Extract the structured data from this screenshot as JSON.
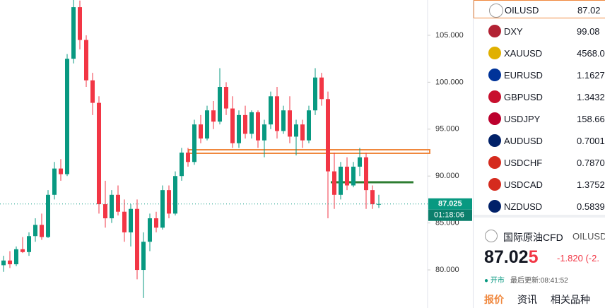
{
  "chart_data": {
    "type": "candlestick",
    "ylim": [
      75.94,
      108.76
    ],
    "yticks": [
      {
        "value": 80,
        "label": "80.000"
      },
      {
        "value": 85,
        "label": "85.000"
      },
      {
        "value": 90,
        "label": "90.000"
      },
      {
        "value": 95,
        "label": "95.000"
      },
      {
        "value": 100,
        "label": "100.000"
      },
      {
        "value": 105,
        "label": "105.000"
      }
    ],
    "up_color": "#089981",
    "down_color": "#f23645",
    "open": [
      80.5,
      81.0,
      80.6,
      82.2,
      81.9,
      83.6,
      84.8,
      83.5,
      88.0,
      90.8,
      90.2,
      102.5,
      108,
      104.5,
      100.2,
      97.8,
      87.0,
      85.5,
      88.0,
      86.2,
      84.0,
      86.5,
      80.0,
      83.0,
      85.5,
      84.5,
      88.5,
      86.0,
      90.0,
      92.5,
      91.5,
      95.5,
      94.0,
      97.0,
      95.8,
      99.5,
      97.2,
      93.5,
      96.5,
      94.5,
      96.8,
      93.8,
      95.5,
      98.5,
      94.8,
      97.0,
      94.2,
      95.5,
      93.8,
      97.0,
      100.5,
      98.2,
      90.5,
      88.0,
      91.0,
      89.0,
      91.0,
      92.0,
      88.5,
      87.0
    ],
    "high": [
      81.5,
      82.0,
      82.5,
      83.5,
      84.0,
      85.5,
      86.0,
      88.5,
      91.5,
      91.8,
      103,
      109,
      108.7,
      105,
      101,
      98.5,
      89.5,
      88.5,
      89.0,
      87.5,
      87.0,
      87.5,
      84.0,
      86.0,
      86.2,
      89.0,
      89.0,
      90.5,
      93.0,
      93.0,
      96.0,
      96.5,
      97.5,
      98.0,
      101.5,
      100.0,
      98.5,
      97.0,
      97.5,
      97.0,
      97.0,
      96.0,
      99.0,
      99.5,
      97.5,
      98.5,
      96.0,
      96.0,
      97.5,
      101.5,
      101.0,
      99.0,
      92.5,
      91.5,
      92.0,
      91.5,
      93.0,
      92.5,
      89.0,
      88.0
    ],
    "low": [
      79.8,
      80.2,
      80.4,
      81.8,
      81.5,
      83.0,
      83.2,
      83.4,
      87.5,
      89.5,
      90.0,
      102,
      103.5,
      99.5,
      96.5,
      86.0,
      84.5,
      85.0,
      85.8,
      83.0,
      82.5,
      79.0,
      77.0,
      82.0,
      84.0,
      84.3,
      85.5,
      85.8,
      89.5,
      91.0,
      91.2,
      93.5,
      93.8,
      95.0,
      95.5,
      96.5,
      93.0,
      93.0,
      94.0,
      94.0,
      93.0,
      92.0,
      95.0,
      94.0,
      94.5,
      93.5,
      92.2,
      93.0,
      93.5,
      96.5,
      97.5,
      85.5,
      86.5,
      87.5,
      88.5,
      88.8,
      90.0,
      86.5,
      86.5,
      86.6
    ],
    "close": [
      81.0,
      80.6,
      82.2,
      81.9,
      83.6,
      84.8,
      83.5,
      88.0,
      90.8,
      90.2,
      102.5,
      108,
      104.5,
      100.2,
      97.8,
      87.0,
      85.5,
      88.0,
      86.2,
      84.0,
      86.5,
      80.0,
      83.0,
      85.5,
      84.5,
      88.5,
      86.0,
      90.0,
      92.5,
      91.5,
      95.5,
      94.0,
      97.0,
      95.8,
      99.5,
      97.2,
      93.5,
      96.5,
      94.5,
      96.8,
      93.8,
      95.5,
      98.5,
      94.8,
      97.0,
      94.2,
      95.5,
      93.8,
      97.0,
      100.5,
      98.2,
      90.5,
      88.0,
      91.0,
      89.0,
      91.0,
      92.0,
      88.5,
      87.0,
      87.025
    ],
    "last_price": {
      "value": 87.025,
      "label": "87.025"
    },
    "countdown": "01:18:06"
  },
  "watchlist": {
    "rows": [
      {
        "symbol": "OILUSD",
        "price": "87.02"
      },
      {
        "symbol": "DXY",
        "price": "99.08"
      },
      {
        "symbol": "XAUUSD",
        "price": "4568.0"
      },
      {
        "symbol": "EURUSD",
        "price": "1.1627"
      },
      {
        "symbol": "GBPUSD",
        "price": "1.3432"
      },
      {
        "symbol": "USDJPY",
        "price": "158.66"
      },
      {
        "symbol": "AUDUSD",
        "price": "0.7001"
      },
      {
        "symbol": "USDCHF",
        "price": "0.7870"
      },
      {
        "symbol": "USDCAD",
        "price": "1.3752"
      },
      {
        "symbol": "NZDUSD",
        "price": "0.5839"
      }
    ]
  },
  "detail": {
    "name": "国际原油CFD",
    "symbol": "OILUSD",
    "price": "87.025",
    "change": "-1.820 (-2.",
    "status": "● 开市",
    "updated": "最后更新:08:41:52",
    "tabs": [
      "报价",
      "资讯",
      "相关品种"
    ]
  }
}
